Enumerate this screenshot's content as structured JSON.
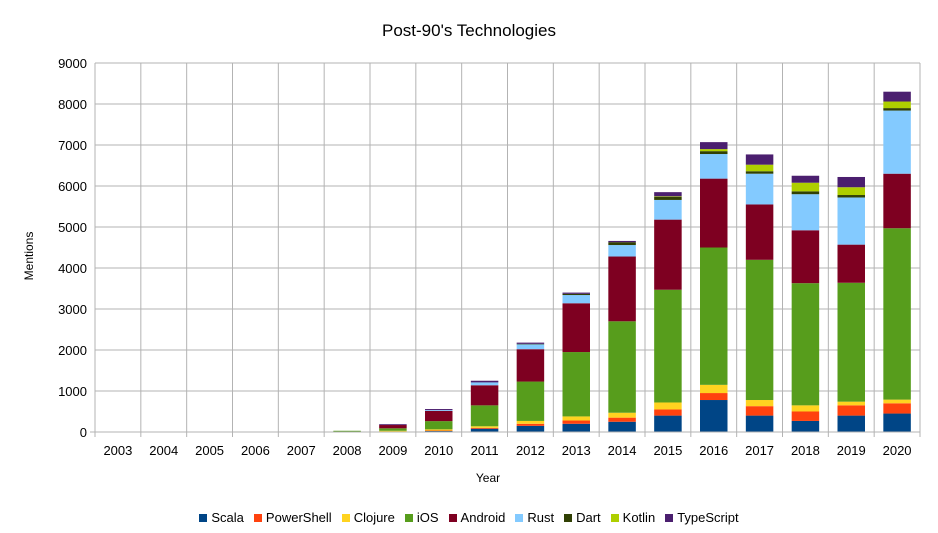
{
  "chart_data": {
    "type": "bar",
    "stacked": true,
    "title": "Post-90's Technologies",
    "xlabel": "Year",
    "ylabel": "Mentions",
    "ylim": [
      0,
      9000
    ],
    "yticks": [
      0,
      1000,
      2000,
      3000,
      4000,
      5000,
      6000,
      7000,
      8000,
      9000
    ],
    "grid": true,
    "legend_position": "bottom",
    "categories": [
      "2003",
      "2004",
      "2005",
      "2006",
      "2007",
      "2008",
      "2009",
      "2010",
      "2011",
      "2012",
      "2013",
      "2014",
      "2015",
      "2016",
      "2017",
      "2018",
      "2019",
      "2020"
    ],
    "series": [
      {
        "name": "Scala",
        "color": "#004586",
        "values": [
          0,
          0,
          0,
          0,
          0,
          0,
          10,
          30,
          80,
          150,
          200,
          250,
          400,
          780,
          400,
          270,
          400,
          450
        ]
      },
      {
        "name": "PowerShell",
        "color": "#ff420e",
        "values": [
          0,
          0,
          0,
          0,
          0,
          0,
          0,
          5,
          20,
          50,
          80,
          100,
          150,
          170,
          230,
          230,
          250,
          250
        ]
      },
      {
        "name": "Clojure",
        "color": "#ffd320",
        "values": [
          0,
          0,
          10,
          10,
          10,
          10,
          20,
          30,
          40,
          70,
          100,
          120,
          170,
          200,
          150,
          150,
          90,
          90
        ]
      },
      {
        "name": "iOS",
        "color": "#579d1c",
        "values": [
          0,
          0,
          0,
          0,
          0,
          20,
          60,
          200,
          510,
          960,
          1570,
          2230,
          2750,
          3350,
          3420,
          2980,
          2900,
          4180
        ]
      },
      {
        "name": "Android",
        "color": "#7e0021",
        "values": [
          0,
          0,
          0,
          0,
          0,
          0,
          80,
          250,
          490,
          790,
          1190,
          1580,
          1710,
          1680,
          1350,
          1290,
          930,
          1330
        ]
      },
      {
        "name": "Rust",
        "color": "#83caff",
        "values": [
          0,
          0,
          0,
          0,
          0,
          0,
          0,
          20,
          70,
          120,
          200,
          280,
          480,
          600,
          750,
          880,
          1150,
          1540
        ]
      },
      {
        "name": "Dart",
        "color": "#314004",
        "values": [
          0,
          0,
          0,
          0,
          0,
          0,
          0,
          0,
          0,
          10,
          30,
          70,
          80,
          70,
          60,
          70,
          60,
          60
        ]
      },
      {
        "name": "Kotlin",
        "color": "#aecf00",
        "values": [
          0,
          0,
          0,
          0,
          0,
          0,
          0,
          0,
          0,
          0,
          0,
          0,
          10,
          50,
          160,
          210,
          190,
          160
        ]
      },
      {
        "name": "TypeScript",
        "color": "#4b1f6f",
        "values": [
          10,
          10,
          0,
          0,
          0,
          0,
          20,
          25,
          40,
          30,
          30,
          30,
          100,
          170,
          250,
          170,
          250,
          240
        ]
      }
    ]
  }
}
